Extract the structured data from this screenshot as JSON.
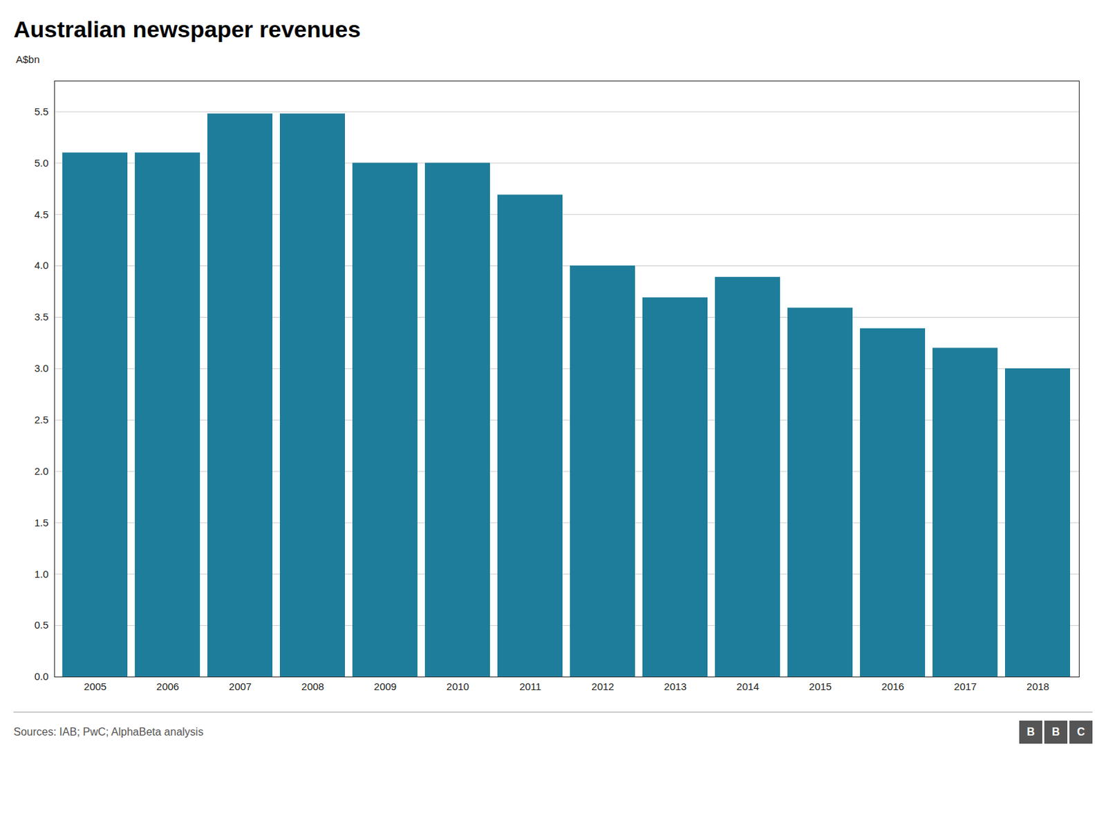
{
  "chart_data": {
    "type": "bar",
    "title": "Australian newspaper revenues",
    "ylabel": "A$bn",
    "caption": "Sources: IAB; PwC; AlphaBeta analysis",
    "logo": "BBC",
    "categories": [
      "2005",
      "2006",
      "2007",
      "2008",
      "2009",
      "2010",
      "2011",
      "2012",
      "2013",
      "2014",
      "2015",
      "2016",
      "2017",
      "2018"
    ],
    "values": [
      5.1,
      5.1,
      5.48,
      5.48,
      5.0,
      5.0,
      4.69,
      4.0,
      3.69,
      3.89,
      3.59,
      3.39,
      3.2,
      3.0
    ],
    "color": "#1e7d9a",
    "ylim": [
      0,
      5.8
    ],
    "yticks": [
      {
        "value": 0,
        "label": "0.0"
      },
      0.5,
      {
        "value": 1,
        "label": "1.0"
      },
      1.5,
      {
        "value": 2,
        "label": "2.0"
      },
      2.5,
      {
        "value": 3,
        "label": "3.0"
      },
      3.5,
      {
        "value": 4,
        "label": "4.0"
      },
      4.5,
      {
        "value": 5,
        "label": "5.0"
      },
      5.5
    ],
    "grid": true
  }
}
